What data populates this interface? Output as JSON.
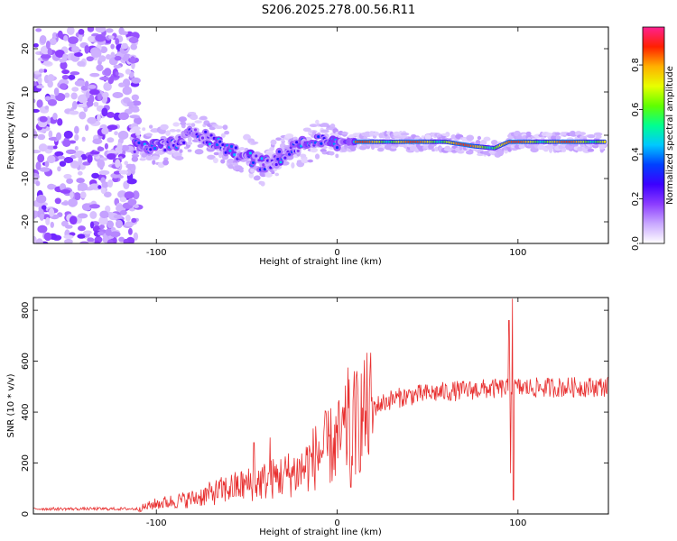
{
  "title": "S206.2025.278.00.56.R11",
  "chart_data": [
    {
      "type": "heatmap",
      "title": "S206.2025.278.00.56.R11",
      "xlabel": "Height of straight line (km)",
      "ylabel": "Frequency (Hz)",
      "xlim": [
        -168,
        150
      ],
      "ylim": [
        -25,
        25
      ],
      "xticks": [
        -100,
        0,
        100
      ],
      "yticks": [
        -20,
        -10,
        0,
        10,
        20
      ],
      "colorbar": {
        "label": "Normalized spectral amplitude",
        "range": [
          0,
          0.97
        ],
        "ticks": [
          0.0,
          0.2,
          0.4,
          0.6,
          0.8
        ],
        "colors": [
          "#ffffff",
          "#c9a8ff",
          "#8c3cff",
          "#3c00ff",
          "#0040ff",
          "#00c8ff",
          "#00ff90",
          "#60ff00",
          "#e8ff00",
          "#ffb000",
          "#ff2000",
          "#ff2090"
        ]
      },
      "ridge": {
        "description_points": [
          {
            "x": -112,
            "y": -2.5
          },
          {
            "x": -100,
            "y": -2.5
          },
          {
            "x": -90,
            "y": -2
          },
          {
            "x": -80,
            "y": 1
          },
          {
            "x": -70,
            "y": -1
          },
          {
            "x": -60,
            "y": -3
          },
          {
            "x": -50,
            "y": -5
          },
          {
            "x": -40,
            "y": -7
          },
          {
            "x": -30,
            "y": -4.5
          },
          {
            "x": -20,
            "y": -2
          },
          {
            "x": -10,
            "y": -1
          },
          {
            "x": 0,
            "y": -1.5
          },
          {
            "x": 20,
            "y": -1.5
          },
          {
            "x": 60,
            "y": -1.5
          },
          {
            "x": 75,
            "y": -2.5
          },
          {
            "x": 87,
            "y": -3
          },
          {
            "x": 95,
            "y": -1.5
          },
          {
            "x": 120,
            "y": -1.5
          },
          {
            "x": 148,
            "y": -1.5
          }
        ],
        "strong_segment_x": [
          10,
          148
        ],
        "noise_region_x": [
          -168,
          -110
        ]
      }
    },
    {
      "type": "line",
      "xlabel": "Height of straight line (km)",
      "ylabel": "SNR (10 * v/v)",
      "xlim": [
        -168,
        150
      ],
      "ylim": [
        0,
        850
      ],
      "xticks": [
        -100,
        0,
        100
      ],
      "yticks": [
        0,
        200,
        400,
        600,
        800
      ],
      "color": "#e83030",
      "trend": [
        {
          "x": -168,
          "y": 20
        },
        {
          "x": -110,
          "y": 20
        },
        {
          "x": -100,
          "y": 40
        },
        {
          "x": -80,
          "y": 60
        },
        {
          "x": -60,
          "y": 100
        },
        {
          "x": -40,
          "y": 130
        },
        {
          "x": -20,
          "y": 170
        },
        {
          "x": -10,
          "y": 240
        },
        {
          "x": 0,
          "y": 280
        },
        {
          "x": 10,
          "y": 360
        },
        {
          "x": 20,
          "y": 420
        },
        {
          "x": 30,
          "y": 450
        },
        {
          "x": 40,
          "y": 465
        },
        {
          "x": 60,
          "y": 480
        },
        {
          "x": 80,
          "y": 490
        },
        {
          "x": 100,
          "y": 495
        },
        {
          "x": 150,
          "y": 500
        }
      ],
      "spikes": [
        {
          "x": 6,
          "y": 575
        },
        {
          "x": 7.5,
          "y": 105
        },
        {
          "x": 95,
          "y": 760
        },
        {
          "x": 97,
          "y": 845
        },
        {
          "x": 97.5,
          "y": 55
        },
        {
          "x": 96,
          "y": 160
        },
        {
          "x": -37,
          "y": 300
        },
        {
          "x": -46,
          "y": 280
        }
      ]
    }
  ]
}
